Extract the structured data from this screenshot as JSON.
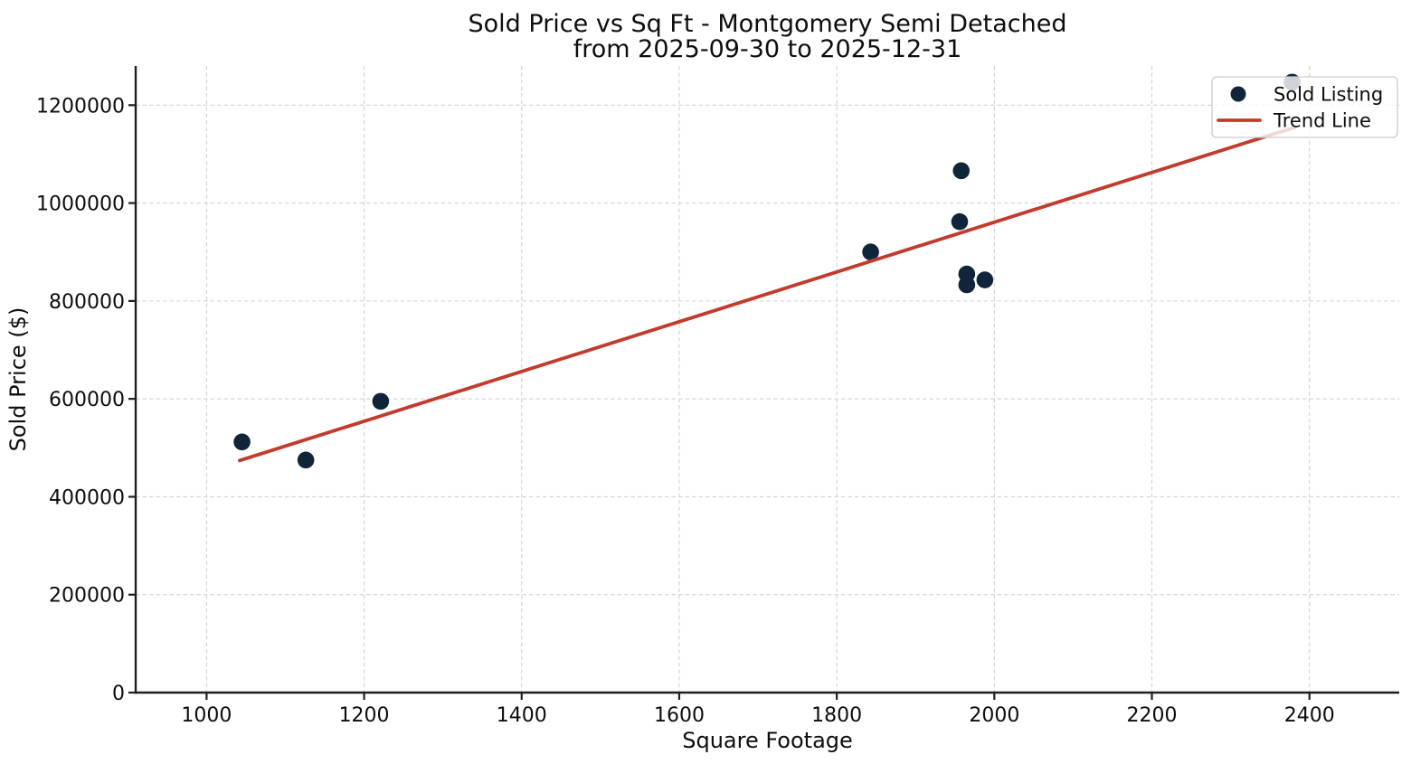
{
  "chart_data": {
    "type": "scatter",
    "title_line1": "Sold Price vs Sq Ft - Montgomery Semi Detached",
    "title_line2": "from 2025-09-30 to 2025-12-31",
    "xlabel": "Square Footage",
    "ylabel": "Sold Price ($)",
    "xlim": [
      910,
      2514
    ],
    "ylim": [
      0,
      1280000
    ],
    "x_ticks": [
      1000,
      1200,
      1400,
      1600,
      1800,
      2000,
      2200,
      2400
    ],
    "y_ticks": [
      0,
      200000,
      400000,
      600000,
      800000,
      1000000,
      1200000
    ],
    "grid": true,
    "grid_style": "dashed",
    "legend_position": "upper right",
    "series": [
      {
        "name": "Sold Listing",
        "kind": "scatter",
        "color": "#102539",
        "points": [
          [
            1045,
            512000
          ],
          [
            1126,
            475000
          ],
          [
            1221,
            595000
          ],
          [
            1843,
            900000
          ],
          [
            1956,
            962000
          ],
          [
            1958,
            1066000
          ],
          [
            1965,
            855000
          ],
          [
            1965,
            833000
          ],
          [
            1988,
            843000
          ],
          [
            2378,
            1247000
          ]
        ]
      },
      {
        "name": "Trend Line",
        "kind": "line",
        "color": "#c23b2c",
        "points": [
          [
            1042,
            474000
          ],
          [
            2382,
            1155000
          ]
        ]
      }
    ],
    "legend": {
      "items": [
        {
          "label": "Sold Listing",
          "marker": "dot"
        },
        {
          "label": "Trend Line",
          "marker": "line"
        }
      ]
    }
  },
  "style": {
    "background": "#ffffff",
    "point_color": "#102539",
    "trend_color": "#c23b2c",
    "grid_color": "#d2d2d2",
    "axis_color": "#1f1f1f",
    "text_color": "#0d0d0d",
    "legend_border": "#cccccc",
    "legend_fill_alpha": 0.8
  }
}
